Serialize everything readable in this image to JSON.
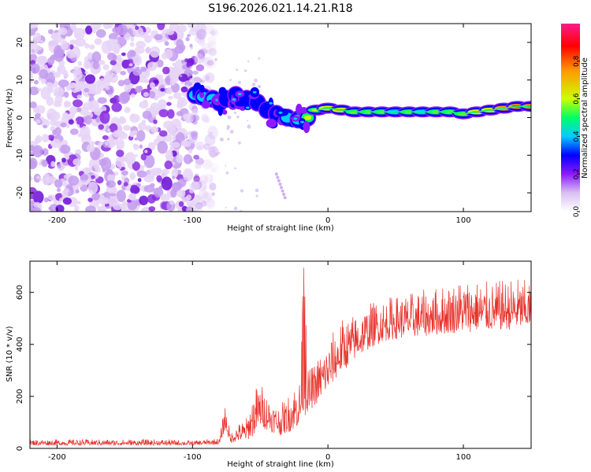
{
  "title": "S196.2026.021.14.21.R18",
  "chart_data": [
    {
      "type": "heatmap",
      "title": "S196.2026.021.14.21.R18",
      "xlabel": "Height of straight line (km)",
      "ylabel": "Frequency (Hz)",
      "xlim": [
        -220,
        150
      ],
      "ylim": [
        -25,
        25
      ],
      "xticks": [
        -200,
        -100,
        0,
        100
      ],
      "yticks": [
        -20,
        -10,
        0,
        10,
        20
      ],
      "colorbar": {
        "label": "Normalized spectral amplitude",
        "range": [
          0,
          1
        ],
        "ticks": [
          0.0,
          0.2,
          0.4,
          0.6,
          0.8
        ],
        "colors": [
          "#ffffff",
          "#d9bff2",
          "#8c1aff",
          "#0000ff",
          "#00ccff",
          "#00ff66",
          "#ccff00",
          "#ff9900",
          "#ff0000",
          "#ff1a8c"
        ]
      },
      "noise_region_km": [
        -220,
        -85
      ],
      "signal_track": [
        {
          "x": -98,
          "f": 6.0,
          "amp": 0.4
        },
        {
          "x": -92,
          "f": 5.5,
          "amp": 0.5
        },
        {
          "x": -85,
          "f": 5.0,
          "amp": 0.45
        },
        {
          "x": -80,
          "f": 4.0,
          "amp": 0.35
        },
        {
          "x": -75,
          "f": 5.0,
          "amp": 0.35
        },
        {
          "x": -68,
          "f": 6.0,
          "amp": 0.3
        },
        {
          "x": -60,
          "f": 5.0,
          "amp": 0.3
        },
        {
          "x": -52,
          "f": 4.0,
          "amp": 0.28
        },
        {
          "x": -45,
          "f": 2.0,
          "amp": 0.3
        },
        {
          "x": -38,
          "f": 1.0,
          "amp": 0.35
        },
        {
          "x": -30,
          "f": 0.0,
          "amp": 0.4
        },
        {
          "x": -22,
          "f": -0.5,
          "amp": 0.5
        },
        {
          "x": -15,
          "f": 0.0,
          "amp": 0.55
        },
        {
          "x": -8,
          "f": 2.0,
          "amp": 0.6
        },
        {
          "x": 0,
          "f": 2.5,
          "amp": 0.65
        },
        {
          "x": 10,
          "f": 2.0,
          "amp": 0.65
        },
        {
          "x": 20,
          "f": 1.5,
          "amp": 0.6
        },
        {
          "x": 30,
          "f": 1.5,
          "amp": 0.6
        },
        {
          "x": 40,
          "f": 1.5,
          "amp": 0.55
        },
        {
          "x": 50,
          "f": 1.5,
          "amp": 0.5
        },
        {
          "x": 60,
          "f": 1.5,
          "amp": 0.55
        },
        {
          "x": 70,
          "f": 1.5,
          "amp": 0.5
        },
        {
          "x": 80,
          "f": 1.5,
          "amp": 0.55
        },
        {
          "x": 90,
          "f": 1.5,
          "amp": 0.6
        },
        {
          "x": 100,
          "f": 1.0,
          "amp": 0.6
        },
        {
          "x": 110,
          "f": 1.5,
          "amp": 0.65
        },
        {
          "x": 120,
          "f": 2.0,
          "amp": 0.7
        },
        {
          "x": 130,
          "f": 2.5,
          "amp": 0.75
        },
        {
          "x": 140,
          "f": 3.0,
          "amp": 0.85
        },
        {
          "x": 150,
          "f": 3.0,
          "amp": 0.9
        }
      ]
    },
    {
      "type": "line",
      "xlabel": "Height of straight line (km)",
      "ylabel": "SNR (10 * v/v)",
      "xlim": [
        -220,
        150
      ],
      "ylim": [
        0,
        720
      ],
      "xticks": [
        -200,
        -100,
        0,
        100
      ],
      "yticks": [
        0,
        200,
        400,
        600
      ],
      "line_color": "#e8302a",
      "series": [
        {
          "name": "SNR",
          "x": [
            -220,
            -200,
            -180,
            -160,
            -140,
            -120,
            -100,
            -90,
            -80,
            -76,
            -72,
            -68,
            -60,
            -55,
            -50,
            -45,
            -40,
            -35,
            -30,
            -25,
            -20,
            -18,
            -15,
            -10,
            -5,
            0,
            5,
            10,
            20,
            30,
            40,
            50,
            60,
            70,
            80,
            90,
            100,
            110,
            120,
            130,
            140,
            150
          ],
          "base": [
            12,
            12,
            12,
            12,
            12,
            12,
            12,
            14,
            15,
            70,
            20,
            25,
            30,
            45,
            80,
            70,
            60,
            50,
            60,
            70,
            90,
            120,
            140,
            160,
            190,
            220,
            260,
            290,
            340,
            380,
            410,
            420,
            425,
            430,
            435,
            440,
            445,
            450,
            450,
            455,
            455,
            460
          ],
          "peak": [
            35,
            35,
            35,
            35,
            35,
            35,
            30,
            35,
            40,
            180,
            60,
            90,
            120,
            230,
            260,
            220,
            180,
            170,
            200,
            260,
            280,
            720,
            300,
            330,
            380,
            420,
            460,
            500,
            520,
            560,
            580,
            590,
            600,
            610,
            620,
            640,
            660,
            650,
            640,
            650,
            660,
            640
          ]
        }
      ]
    }
  ]
}
